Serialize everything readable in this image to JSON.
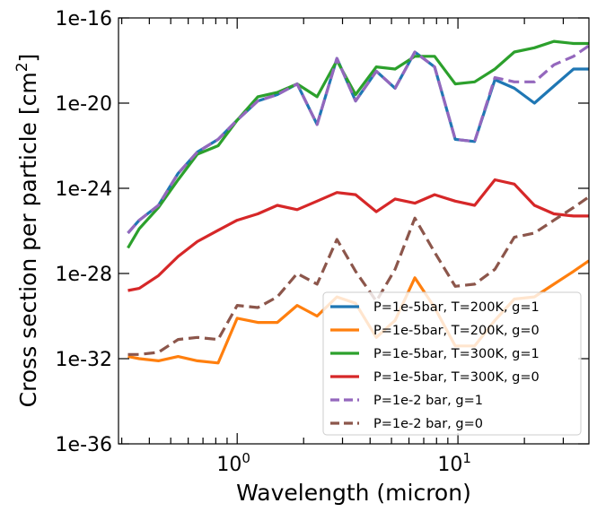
{
  "chart_data": {
    "type": "line",
    "title": "",
    "xlabel": "Wavelength (micron)",
    "ylabel": "Cross section per particle [cm",
    "ylabel_superscript": "2",
    "ylabel_suffix": "]",
    "xscale": "log",
    "yscale": "log",
    "xlim": [
      0.29,
      39.2
    ],
    "ylim_exponent": [
      -36,
      -16
    ],
    "x_ticks": [
      {
        "value": 1,
        "base": "10",
        "exp": "0"
      },
      {
        "value": 10,
        "base": "10",
        "exp": "1"
      }
    ],
    "y_ticks": [
      {
        "exponent": -16,
        "label": "1e-16"
      },
      {
        "exponent": -20,
        "label": "1e-20"
      },
      {
        "exponent": -24,
        "label": "1e-24"
      },
      {
        "exponent": -28,
        "label": "1e-28"
      },
      {
        "exponent": -32,
        "label": "1e-32"
      },
      {
        "exponent": -36,
        "label": "1e-36"
      }
    ],
    "grid": false,
    "legend_position": "lower-right",
    "x": [
      0.32,
      0.36,
      0.44,
      0.54,
      0.66,
      0.82,
      1.0,
      1.24,
      1.52,
      1.87,
      2.3,
      2.83,
      3.44,
      4.27,
      5.19,
      6.38,
      7.84,
      9.72,
      11.9,
      14.7,
      18.0,
      22.2,
      27.2,
      33.4,
      39.2
    ],
    "y_units": "log10 of cross section [cm^2]",
    "series": [
      {
        "name": "P=1e-5bar, T=200K, g=1",
        "color": "#1f77b4",
        "dash": "solid",
        "values": [
          -26.1,
          -25.5,
          -24.8,
          -23.3,
          -22.3,
          -21.7,
          -20.8,
          -19.9,
          -19.6,
          -19.1,
          -21.0,
          -17.9,
          -19.9,
          -18.5,
          -19.3,
          -17.6,
          -18.3,
          -21.7,
          -21.8,
          -18.9,
          -19.3,
          -20.0,
          -19.2,
          -18.4,
          -18.4
        ]
      },
      {
        "name": "P=1e-5bar, T=200K, g=0",
        "color": "#ff7f0e",
        "dash": "solid",
        "values": [
          -31.9,
          -32.0,
          -32.1,
          -31.9,
          -32.1,
          -32.2,
          -30.1,
          -30.3,
          -30.3,
          -29.5,
          -30.0,
          -29.1,
          -29.4,
          -31.0,
          -30.2,
          -28.2,
          -29.6,
          -31.4,
          -31.4,
          -30.2,
          -29.2,
          -29.1,
          -28.5,
          -27.9,
          -27.4
        ]
      },
      {
        "name": "P=1e-5bar, T=300K, g=1",
        "color": "#2ca02c",
        "dash": "solid",
        "values": [
          -26.8,
          -25.9,
          -24.9,
          -23.6,
          -22.4,
          -22.0,
          -20.8,
          -19.7,
          -19.5,
          -19.1,
          -19.7,
          -18.0,
          -19.6,
          -18.3,
          -18.4,
          -17.8,
          -17.8,
          -19.1,
          -19.0,
          -18.4,
          -17.6,
          -17.4,
          -17.1,
          -17.2,
          -17.2
        ]
      },
      {
        "name": "P=1e-5bar, T=300K, g=0",
        "color": "#d62728",
        "dash": "solid",
        "values": [
          -28.8,
          -28.7,
          -28.1,
          -27.2,
          -26.5,
          -25.97,
          -25.5,
          -25.2,
          -24.8,
          -25.0,
          -24.6,
          -24.2,
          -24.3,
          -25.1,
          -24.5,
          -24.7,
          -24.3,
          -24.6,
          -24.8,
          -23.6,
          -23.8,
          -24.8,
          -25.2,
          -25.3,
          -25.3
        ]
      },
      {
        "name": "P=1e-2 bar, g=1",
        "color": "#9467bd",
        "dash": "dashed",
        "values": [
          -26.1,
          -25.5,
          -24.8,
          -23.3,
          -22.3,
          -21.7,
          -20.8,
          -19.9,
          -19.6,
          -19.1,
          -21.0,
          -17.9,
          -19.9,
          -18.5,
          -19.3,
          -17.6,
          -18.3,
          -21.7,
          -21.8,
          -18.8,
          -19.0,
          -19.0,
          -18.2,
          -17.8,
          -17.3
        ]
      },
      {
        "name": "P=1e-2 bar, g=0",
        "color": "#8c564b",
        "dash": "dashed",
        "values": [
          -31.8,
          -31.8,
          -31.7,
          -31.1,
          -31.0,
          -31.1,
          -29.5,
          -29.6,
          -29.1,
          -28.0,
          -28.5,
          -26.4,
          -27.9,
          -29.3,
          -27.8,
          -25.4,
          -27.0,
          -28.6,
          -28.5,
          -27.8,
          -26.3,
          -26.1,
          -25.5,
          -24.9,
          -24.4
        ]
      }
    ]
  }
}
